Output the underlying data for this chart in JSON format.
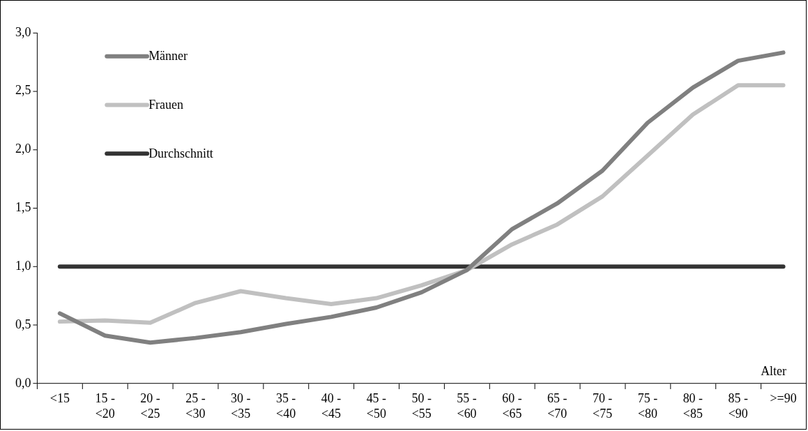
{
  "chart_data": {
    "type": "line",
    "xlabel": "Alter",
    "categories": [
      "<15",
      "15 -\n<20",
      "20 -\n<25",
      "25 -\n<30",
      "30 -\n<35",
      "35 -\n<40",
      "40 -\n<45",
      "45 -\n<50",
      "50 -\n<55",
      "55 -\n<60",
      "60 -\n<65",
      "65 -\n<70",
      "70 -\n<75",
      "75 -\n<80",
      "80 -\n<85",
      "85 -\n<90",
      ">=90"
    ],
    "series": [
      {
        "name": "Männer",
        "color": "#808080",
        "values": [
          0.6,
          0.41,
          0.35,
          0.39,
          0.44,
          0.51,
          0.57,
          0.65,
          0.78,
          0.97,
          1.32,
          1.54,
          1.82,
          2.23,
          2.53,
          2.76,
          2.83
        ]
      },
      {
        "name": "Frauen",
        "color": "#c0c0c0",
        "values": [
          0.53,
          0.54,
          0.52,
          0.69,
          0.79,
          0.73,
          0.68,
          0.73,
          0.84,
          0.97,
          1.19,
          1.36,
          1.6,
          1.95,
          2.3,
          2.55,
          2.55
        ]
      },
      {
        "name": "Durchschnitt",
        "color": "#333333",
        "values": [
          1.0,
          1.0,
          1.0,
          1.0,
          1.0,
          1.0,
          1.0,
          1.0,
          1.0,
          1.0,
          1.0,
          1.0,
          1.0,
          1.0,
          1.0,
          1.0,
          1.0
        ]
      }
    ],
    "ylim": [
      0,
      3
    ],
    "yticks": [
      {
        "value": 0,
        "label": "0,0"
      },
      {
        "value": 0.5,
        "label": "0,5"
      },
      {
        "value": 1,
        "label": "1,0"
      },
      {
        "value": 1.5,
        "label": "1,5"
      },
      {
        "value": 2,
        "label": "2,0"
      },
      {
        "value": 2.5,
        "label": "2,5"
      },
      {
        "value": 3,
        "label": "3,0"
      }
    ],
    "grid": false,
    "legend": "top left",
    "marker": "none",
    "line_style": "solid"
  }
}
